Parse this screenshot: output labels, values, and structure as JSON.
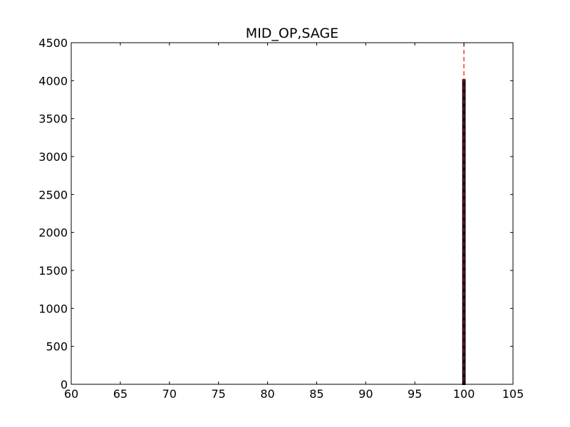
{
  "chart_data": {
    "type": "bar",
    "title": "MID_OP,SAGE",
    "xlabel": "",
    "ylabel": "",
    "xlim": [
      60,
      105
    ],
    "ylim": [
      0,
      4500
    ],
    "xticks": [
      60,
      65,
      70,
      75,
      80,
      85,
      90,
      95,
      100,
      105
    ],
    "yticks": [
      0,
      500,
      1000,
      1500,
      2000,
      2500,
      3000,
      3500,
      4000,
      4500
    ],
    "grid": false,
    "bars": [
      {
        "x_start": 99.9,
        "x_end": 100.1,
        "value": 4010
      }
    ],
    "reference_line": {
      "x": 100,
      "style": "dashed",
      "color": "#ff0000"
    },
    "bar_color": "#0000ff",
    "edge_color": "#000000"
  }
}
